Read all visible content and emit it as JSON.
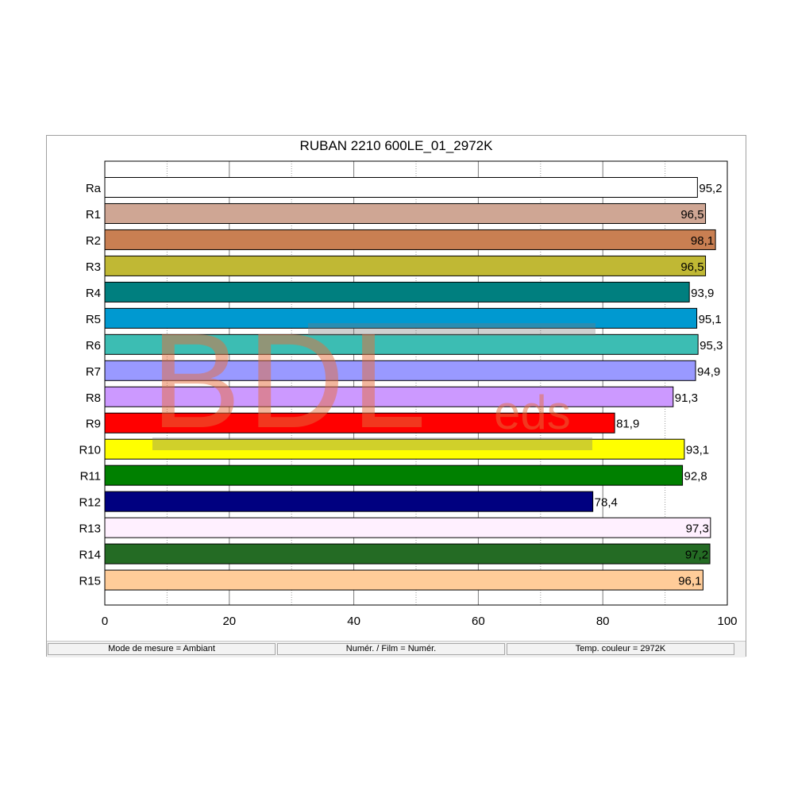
{
  "window": {
    "status": [
      {
        "label": "Mode de mesure = Ambiant"
      },
      {
        "label": "Numér. / Film = Numér."
      },
      {
        "label": "Temp. couleur = 2972K"
      }
    ]
  },
  "watermark": {
    "main": "BDL",
    "sub": "eds"
  },
  "chart_data": {
    "type": "bar",
    "orientation": "horizontal",
    "title": "RUBAN 2210 600LE_01_2972K",
    "xlabel": "",
    "ylabel": "",
    "xlim": [
      0,
      100
    ],
    "x_ticks": [
      "0",
      "20",
      "40",
      "60",
      "80",
      "100"
    ],
    "grid": true,
    "categories": [
      "Ra",
      "R1",
      "R2",
      "R3",
      "R4",
      "R5",
      "R6",
      "R7",
      "R8",
      "R9",
      "R10",
      "R11",
      "R12",
      "R13",
      "R14",
      "R15"
    ],
    "values": [
      95.2,
      96.5,
      98.1,
      96.5,
      93.9,
      95.1,
      95.3,
      94.9,
      91.3,
      81.9,
      93.1,
      92.8,
      78.4,
      97.3,
      97.2,
      96.1
    ],
    "value_labels": [
      "95,2",
      "96,5",
      "98,1",
      "96,5",
      "93,9",
      "95,1",
      "95,3",
      "94,9",
      "91,3",
      "81,9",
      "93,1",
      "92,8",
      "78,4",
      "97,3",
      "97,2",
      "96,1"
    ],
    "colors": [
      "#ffffff",
      "#cfa694",
      "#c97f52",
      "#c0b834",
      "#007f7f",
      "#0099d0",
      "#3cbdb3",
      "#9999ff",
      "#cc99ff",
      "#ff0000",
      "#ffff00",
      "#008000",
      "#000080",
      "#fff0ff",
      "#246b24",
      "#ffcc99"
    ]
  }
}
